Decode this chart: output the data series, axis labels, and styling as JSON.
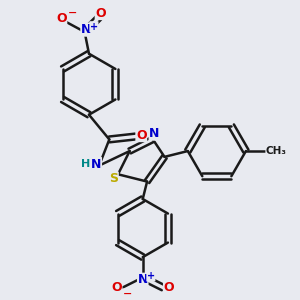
{
  "bg_color": "#e8eaf0",
  "line_color": "#1a1a1a",
  "bond_width": 1.8,
  "atom_colors": {
    "N": "#0000cc",
    "O": "#dd0000",
    "S": "#bbaa00",
    "H": "#008888",
    "C": "#1a1a1a"
  },
  "font_size": 9
}
